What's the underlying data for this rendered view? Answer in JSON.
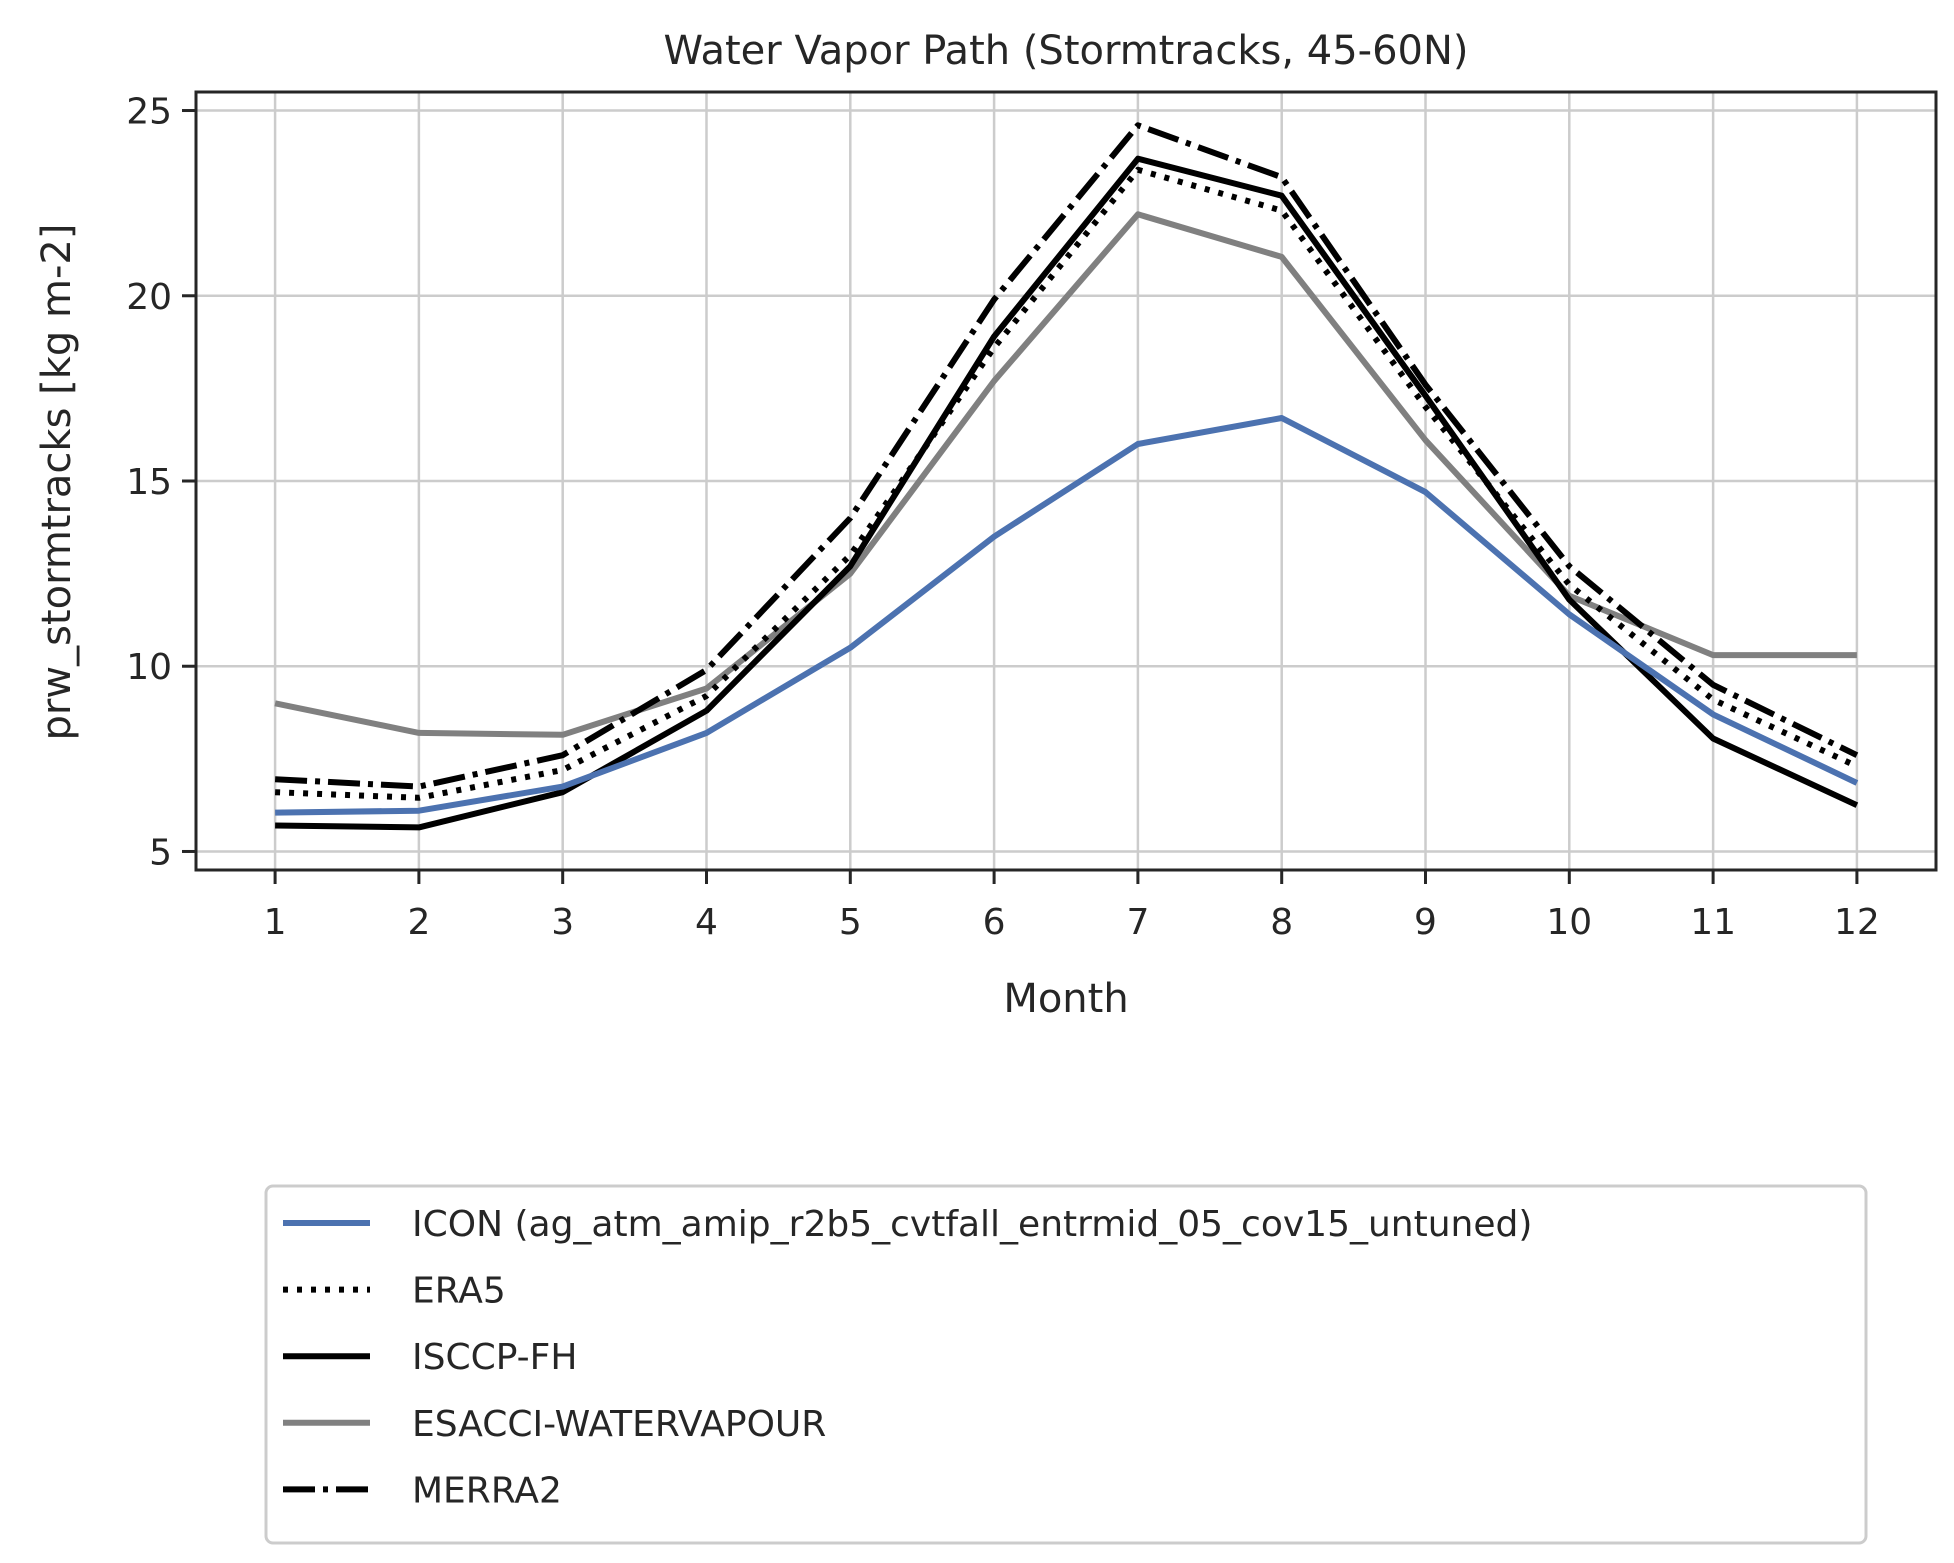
{
  "chart_data": {
    "type": "line",
    "title": "Water Vapor Path (Stormtracks, 45-60N)",
    "xlabel": "Month",
    "ylabel": "prw_stormtracks [kg m-2]",
    "x": [
      1,
      2,
      3,
      4,
      5,
      6,
      7,
      8,
      9,
      10,
      11,
      12
    ],
    "xlim": [
      0.45,
      12.55
    ],
    "ylim": [
      4.5,
      25.5
    ],
    "yticks": [
      5,
      10,
      15,
      20,
      25
    ],
    "grid": true,
    "legend_position": "below",
    "series": [
      {
        "name": "ICON (ag_atm_amip_r2b5_cvtfall_entrmid_05_cov15_untuned)",
        "color": "#4c72b0",
        "linestyle": "solid",
        "values": [
          6.05,
          6.1,
          6.75,
          8.2,
          10.5,
          13.5,
          16.0,
          16.7,
          14.7,
          11.4,
          8.7,
          6.85
        ]
      },
      {
        "name": "ERA5",
        "color": "#000000",
        "linestyle": "dotted",
        "values": [
          6.6,
          6.45,
          7.2,
          9.2,
          13.0,
          18.6,
          23.4,
          22.3,
          17.0,
          12.2,
          9.1,
          7.3
        ]
      },
      {
        "name": "ISCCP-FH",
        "color": "#000000",
        "linestyle": "solid",
        "values": [
          5.7,
          5.65,
          6.6,
          8.8,
          12.7,
          18.9,
          23.7,
          22.7,
          17.3,
          11.8,
          8.05,
          6.25
        ]
      },
      {
        "name": "ESACCI-WATERVAPOUR",
        "color": "#808080",
        "linestyle": "solid",
        "values": [
          9.0,
          8.2,
          8.15,
          9.4,
          12.5,
          17.7,
          22.2,
          21.05,
          16.1,
          11.9,
          10.3,
          10.3
        ]
      },
      {
        "name": "MERRA2",
        "color": "#000000",
        "linestyle": "dashdot",
        "values": [
          6.95,
          6.75,
          7.6,
          9.9,
          14.0,
          19.9,
          24.6,
          23.2,
          17.6,
          12.7,
          9.5,
          7.6
        ]
      }
    ]
  }
}
